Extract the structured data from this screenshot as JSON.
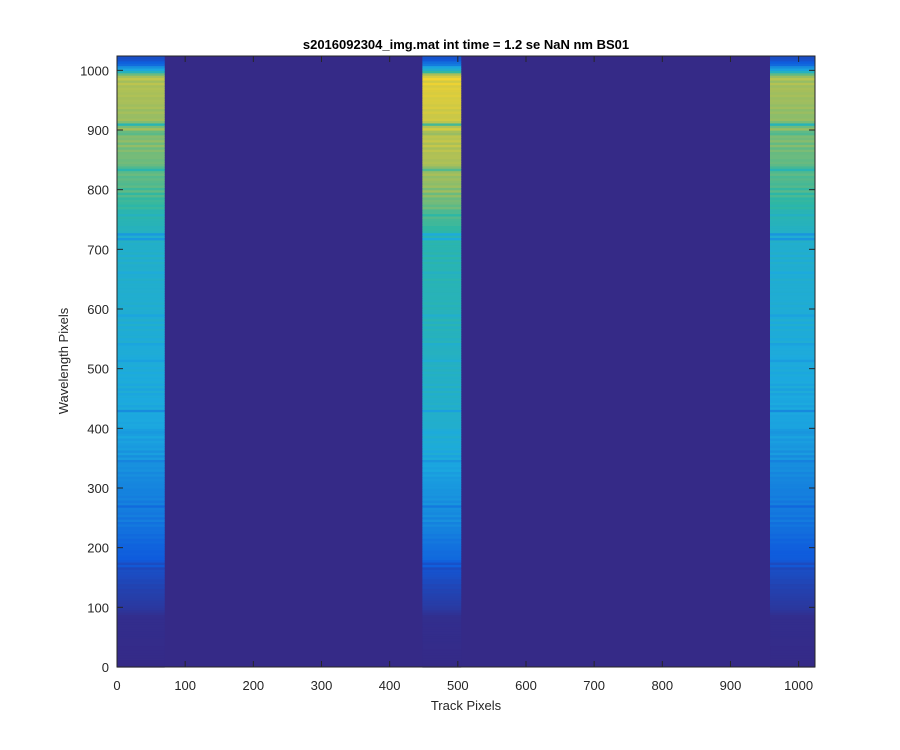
{
  "chart_data": {
    "type": "heatmap",
    "title": "s2016092304_img.mat int time = 1.2 se  NaN nm BS01",
    "xlabel": "Track Pixels",
    "ylabel": "Wavelength Pixels",
    "xlim": [
      0,
      1024
    ],
    "ylim": [
      0,
      1024
    ],
    "x_ticks": [
      0,
      100,
      200,
      300,
      400,
      500,
      600,
      700,
      800,
      900,
      1000
    ],
    "x_tick_labels": [
      "0",
      "100",
      "200",
      "300",
      "400",
      "500",
      "600",
      "700",
      "800",
      "900",
      "1000"
    ],
    "y_ticks": [
      0,
      100,
      200,
      300,
      400,
      500,
      600,
      700,
      800,
      900,
      1000
    ],
    "y_tick_labels": [
      "0",
      "100",
      "200",
      "300",
      "400",
      "500",
      "600",
      "700",
      "800",
      "900",
      "1000"
    ],
    "grid": false,
    "colormap": "parula",
    "background_color": "#352A87",
    "colors": {
      "low": "#352A87",
      "mid_blue": "#0F5CDD",
      "cyan": "#1CAADF",
      "teal": "#2EB7A4",
      "yellow_green": "#A4BE5C",
      "high": "#F9D52D"
    },
    "bands": [
      {
        "x_start": 0,
        "x_end": 70,
        "intensity_scale": 0.88
      },
      {
        "x_start": 448,
        "x_end": 505,
        "intensity_scale": 1.0
      },
      {
        "x_start": 958,
        "x_end": 1024,
        "intensity_scale": 0.86
      }
    ],
    "intensity_profile": [
      {
        "y": 0,
        "v": 0.0
      },
      {
        "y": 85,
        "v": 0.02
      },
      {
        "y": 100,
        "v": 0.08
      },
      {
        "y": 140,
        "v": 0.15
      },
      {
        "y": 165,
        "v": 0.22
      },
      {
        "y": 175,
        "v": 0.28
      },
      {
        "y": 200,
        "v": 0.3
      },
      {
        "y": 240,
        "v": 0.36
      },
      {
        "y": 300,
        "v": 0.4
      },
      {
        "y": 350,
        "v": 0.45
      },
      {
        "y": 400,
        "v": 0.5
      },
      {
        "y": 500,
        "v": 0.53
      },
      {
        "y": 600,
        "v": 0.56
      },
      {
        "y": 700,
        "v": 0.58
      },
      {
        "y": 725,
        "v": 0.6
      },
      {
        "y": 760,
        "v": 0.68
      },
      {
        "y": 800,
        "v": 0.76
      },
      {
        "y": 850,
        "v": 0.82
      },
      {
        "y": 900,
        "v": 0.87
      },
      {
        "y": 950,
        "v": 0.92
      },
      {
        "y": 990,
        "v": 0.95
      },
      {
        "y": 1000,
        "v": 0.55
      },
      {
        "y": 1012,
        "v": 0.3
      },
      {
        "y": 1024,
        "v": 0.18
      }
    ],
    "absorption_lines": [
      {
        "y": 910,
        "depth": 0.3
      },
      {
        "y": 895,
        "depth": 0.15
      },
      {
        "y": 835,
        "depth": 0.22
      },
      {
        "y": 760,
        "depth": 0.12
      },
      {
        "y": 725,
        "depth": 0.3
      },
      {
        "y": 718,
        "depth": 0.2
      },
      {
        "y": 660,
        "depth": 0.1
      },
      {
        "y": 590,
        "depth": 0.12
      },
      {
        "y": 540,
        "depth": 0.1
      },
      {
        "y": 515,
        "depth": 0.12
      },
      {
        "y": 430,
        "depth": 0.14
      },
      {
        "y": 395,
        "depth": 0.12
      },
      {
        "y": 345,
        "depth": 0.1
      },
      {
        "y": 270,
        "depth": 0.12
      },
      {
        "y": 175,
        "depth": 0.35
      },
      {
        "y": 165,
        "depth": 0.3
      }
    ]
  }
}
